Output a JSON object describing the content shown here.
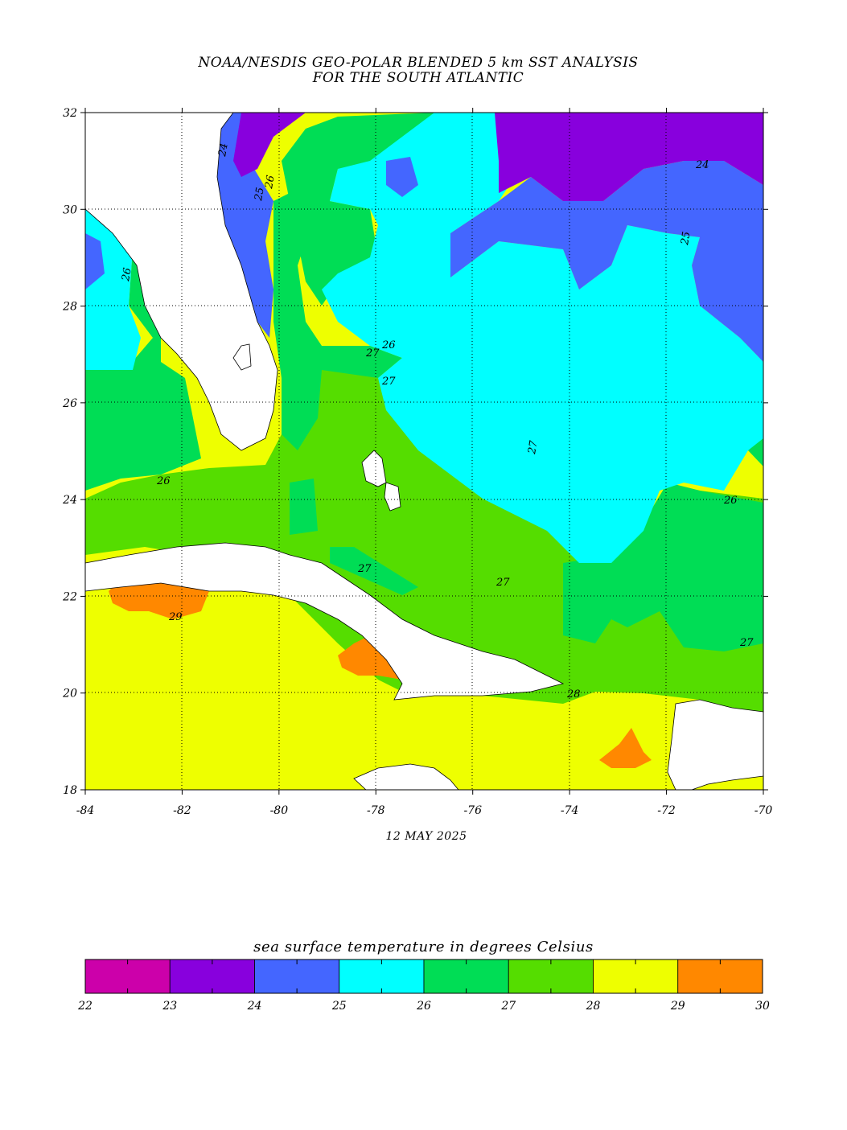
{
  "title": {
    "line1": "NOAA/NESDIS GEO-POLAR BLENDED 5 km SST ANALYSIS",
    "line2": "FOR THE SOUTH ATLANTIC"
  },
  "map": {
    "lat_ticks": [
      "32",
      "30",
      "28",
      "26",
      "24",
      "22",
      "20",
      "18"
    ],
    "lon_ticks": [
      "-84",
      "-82",
      "-80",
      "-78",
      "-76",
      "-74",
      "-72",
      "-70"
    ],
    "lat_range": [
      18,
      32
    ],
    "lon_range": [
      -84,
      -70
    ],
    "date": "12 MAY 2025",
    "contour_labels": [
      "24",
      "25",
      "26",
      "24",
      "25",
      "26",
      "27",
      "26",
      "27",
      "26",
      "26",
      "27",
      "27",
      "27",
      "29",
      "27",
      "28"
    ]
  },
  "legend": {
    "title": "sea surface temperature in degrees Celsius",
    "bins": [
      {
        "from": "22",
        "to": "23",
        "color": "#cc00aa"
      },
      {
        "from": "23",
        "to": "24",
        "color": "#8800dd"
      },
      {
        "from": "24",
        "to": "25",
        "color": "#4466ff"
      },
      {
        "from": "25",
        "to": "26",
        "color": "#00ffff"
      },
      {
        "from": "26",
        "to": "27",
        "color": "#00dd55"
      },
      {
        "from": "27",
        "to": "28",
        "color": "#55dd00"
      },
      {
        "from": "28",
        "to": "29",
        "color": "#eeff00"
      },
      {
        "from": "29",
        "to": "30",
        "color": "#ff8800"
      }
    ],
    "tick_labels": [
      "22",
      "23",
      "24",
      "25",
      "26",
      "27",
      "28",
      "29",
      "30"
    ]
  },
  "colors": {
    "land": "#ffffff",
    "c23_24": "#8800dd",
    "c24_25": "#4466ff",
    "c25_26": "#00ffff",
    "c26_27": "#00dd55",
    "c27_28": "#55dd00",
    "c28_29": "#eeff00",
    "c29_30": "#ff8800"
  }
}
